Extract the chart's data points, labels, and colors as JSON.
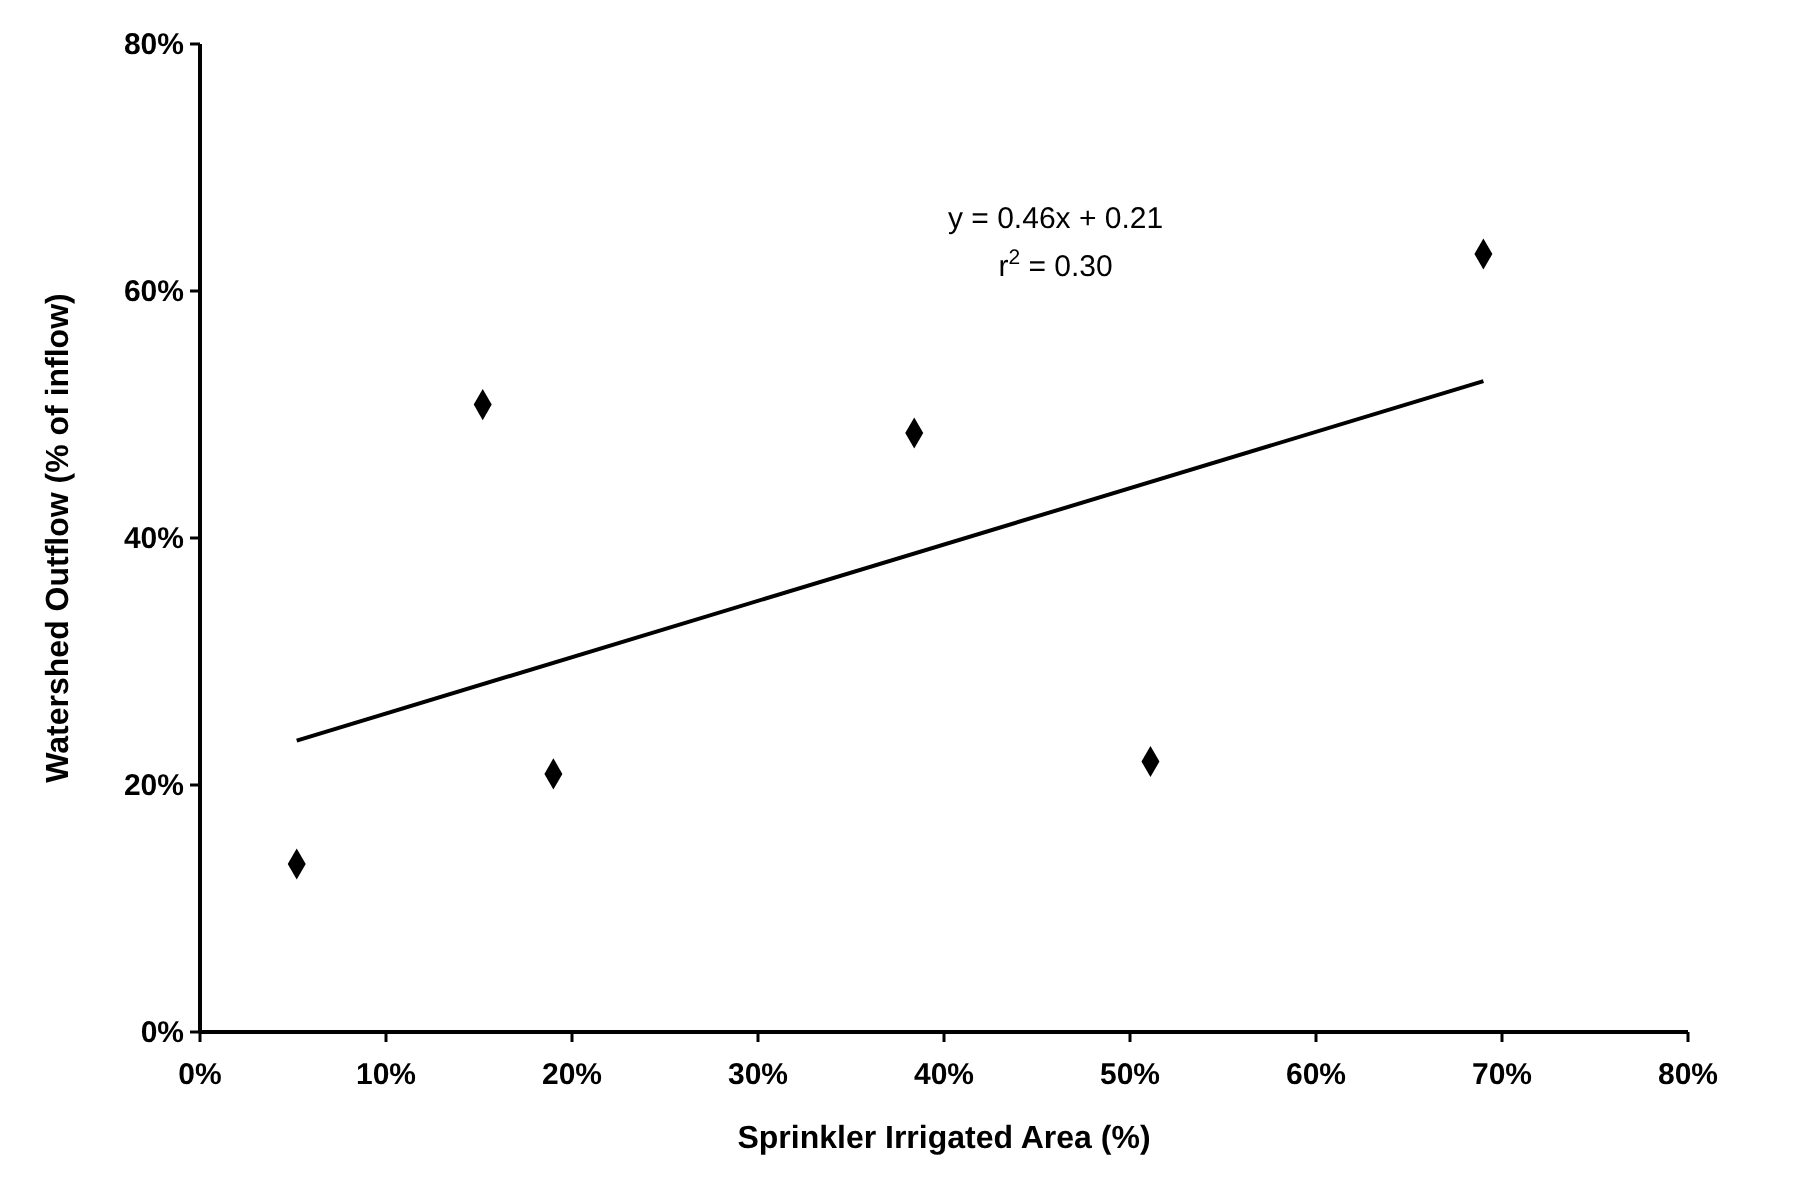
{
  "chart_data": {
    "type": "scatter",
    "xlabel": "Sprinkler Irrigated Area (%)",
    "ylabel": "Watershed Outflow (% of inflow)",
    "xlim": [
      0,
      80
    ],
    "ylim": [
      0,
      80
    ],
    "xticks": [
      {
        "value": 0,
        "label": "0%"
      },
      {
        "value": 10,
        "label": "10%"
      },
      {
        "value": 20,
        "label": "20%"
      },
      {
        "value": 30,
        "label": "30%"
      },
      {
        "value": 40,
        "label": "40%"
      },
      {
        "value": 50,
        "label": "50%"
      },
      {
        "value": 60,
        "label": "60%"
      },
      {
        "value": 70,
        "label": "70%"
      },
      {
        "value": 80,
        "label": "80%"
      }
    ],
    "yticks": [
      {
        "value": 0,
        "label": "0%"
      },
      {
        "value": 20,
        "label": "20%"
      },
      {
        "value": 40,
        "label": "40%"
      },
      {
        "value": 60,
        "label": "60%"
      },
      {
        "value": 80,
        "label": "80%"
      }
    ],
    "marker": "diamond",
    "series": [
      {
        "color": "#000000",
        "x": [
          5.2,
          15.2,
          19.0,
          38.4,
          51.1,
          69.0
        ],
        "values": [
          13.6,
          50.8,
          20.9,
          48.5,
          21.9,
          63.0
        ]
      },
      {
        "type": "line",
        "color": "#000000",
        "marker": "none",
        "line_style": "solid",
        "x": [
          5.2,
          69.0
        ],
        "values": [
          23.6,
          52.7
        ]
      }
    ],
    "annotations": [
      "y = 0.46x + 0.21",
      "r$^{2}$ = 0.30"
    ]
  }
}
